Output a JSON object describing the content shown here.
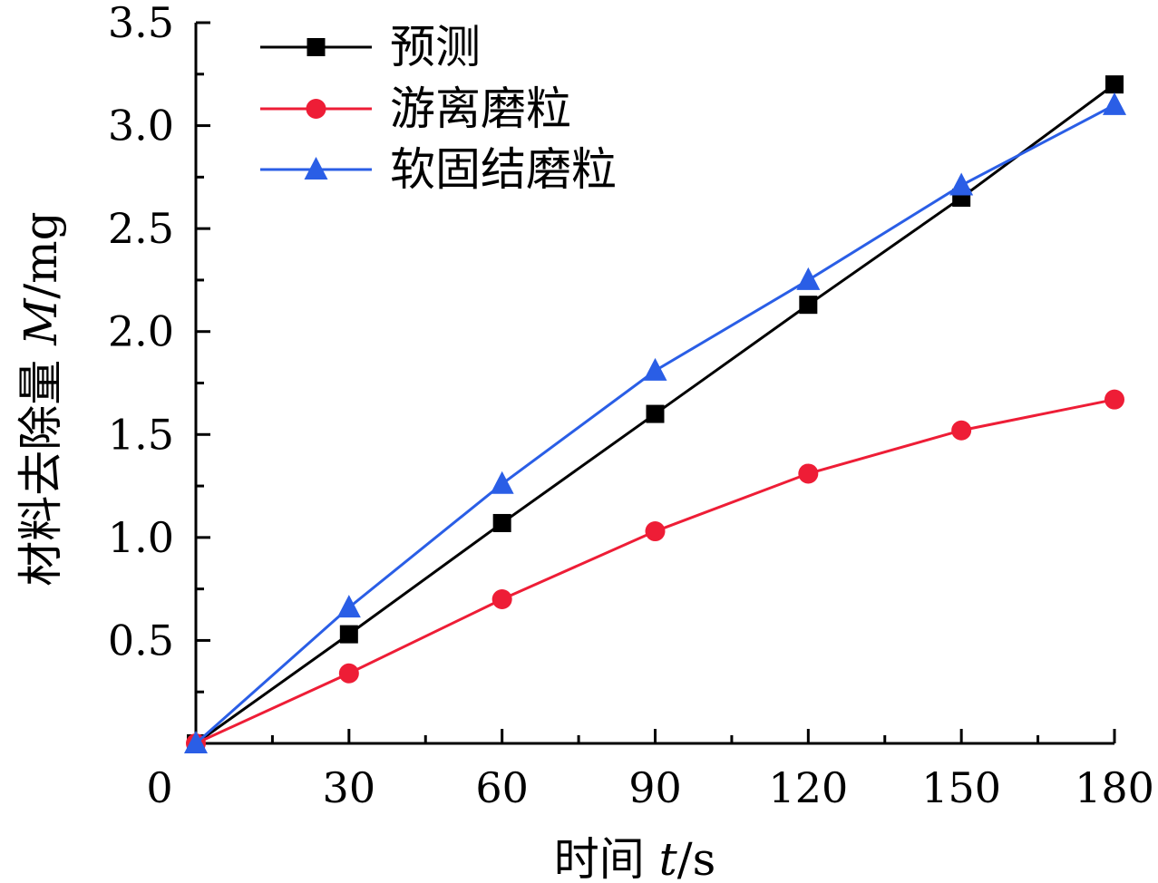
{
  "chart_data": {
    "type": "line",
    "x": [
      0,
      30,
      60,
      90,
      120,
      150,
      180
    ],
    "x_ticks": [
      "0",
      "30",
      "60",
      "90",
      "120",
      "150",
      "180"
    ],
    "y_ticks": [
      "0.5",
      "1.0",
      "1.5",
      "2.0",
      "2.5",
      "3.0",
      "3.5"
    ],
    "xlim": [
      0,
      180
    ],
    "ylim": [
      0,
      3.5
    ],
    "xlabel": "时间 t/s",
    "ylabel": "材料去除量 M/mg",
    "xlabel_prefix": "时间 ",
    "xlabel_var": "t",
    "xlabel_unit": "/s",
    "ylabel_prefix": "材料去除量 ",
    "ylabel_var": "M",
    "ylabel_unit": "/mg",
    "legend_position": "top-left",
    "grid": false,
    "series": [
      {
        "name": "预测",
        "marker": "square",
        "color": "#000000",
        "values": [
          0,
          0.53,
          1.07,
          1.6,
          2.13,
          2.65,
          3.2
        ]
      },
      {
        "name": "游离磨粒",
        "marker": "circle",
        "color": "#ee1d36",
        "values": [
          0,
          0.34,
          0.7,
          1.03,
          1.31,
          1.52,
          1.67
        ]
      },
      {
        "name": "软固结磨粒",
        "marker": "triangle",
        "color": "#2a5ee6",
        "values": [
          0,
          0.66,
          1.26,
          1.81,
          2.25,
          2.71,
          3.1
        ]
      }
    ]
  }
}
